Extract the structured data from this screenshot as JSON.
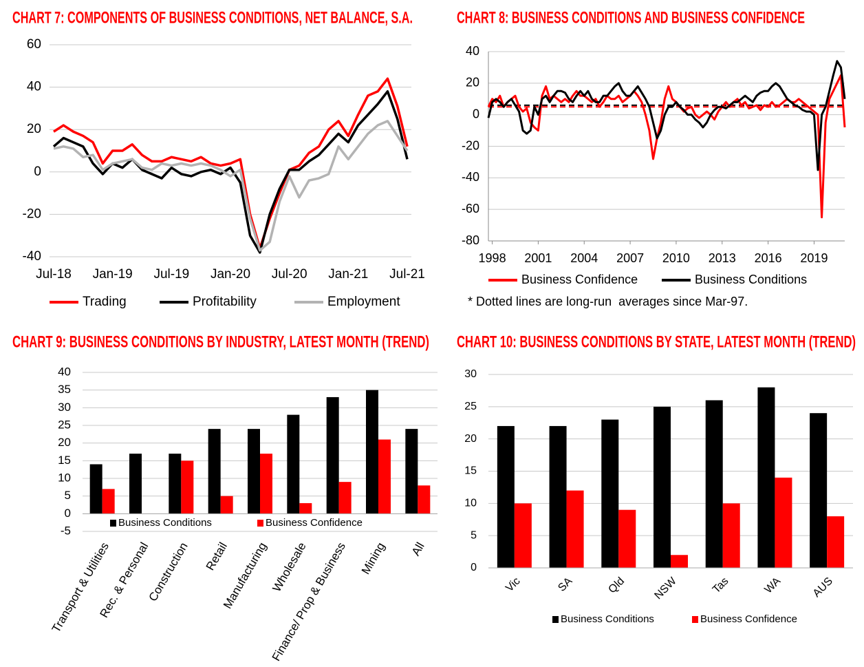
{
  "chart_data": [
    {
      "type": "line",
      "title": "CHART 7: COMPONENTS OF BUSINESS CONDITIONS, NET BALANCE, S.A.",
      "categories": [
        "Jul-18",
        null,
        null,
        null,
        null,
        null,
        "Jan-19",
        null,
        null,
        null,
        null,
        null,
        "Jul-19",
        null,
        null,
        null,
        null,
        null,
        "Jan-20",
        null,
        null,
        null,
        null,
        null,
        "Jul-20",
        null,
        null,
        null,
        null,
        null,
        "Jan-21",
        null,
        null,
        null,
        null,
        null,
        "Jul-21"
      ],
      "series": [
        {
          "name": "Trading",
          "color": "#ff0000",
          "values": [
            19,
            22,
            19,
            17,
            14,
            4,
            10,
            10,
            13,
            8,
            5,
            5,
            7,
            6,
            5,
            7,
            4,
            3,
            4,
            6,
            -20,
            -36,
            -22,
            -10,
            1,
            3,
            9,
            12,
            20,
            24,
            17,
            27,
            36,
            38,
            44,
            31,
            12
          ]
        },
        {
          "name": "Profitability",
          "color": "#000000",
          "values": [
            12,
            16,
            14,
            12,
            4,
            -1,
            4,
            2,
            6,
            1,
            -1,
            -3,
            2,
            -1,
            -2,
            0,
            1,
            -1,
            2,
            -5,
            -30,
            -38,
            -20,
            -8,
            1,
            1,
            5,
            8,
            13,
            18,
            14,
            22,
            27,
            32,
            38,
            25,
            6
          ]
        },
        {
          "name": "Employment",
          "color": "#b3b3b3",
          "values": [
            11,
            12,
            11,
            7,
            8,
            1,
            4,
            5,
            6,
            2,
            1,
            4,
            3,
            4,
            3,
            4,
            3,
            1,
            -2,
            1,
            -22,
            -37,
            -33,
            -14,
            -2,
            -12,
            -4,
            -3,
            -1,
            12,
            6,
            12,
            18,
            22,
            24,
            17,
            10
          ]
        }
      ],
      "ylim": [
        -40,
        60
      ],
      "yticks": [
        -40,
        -20,
        0,
        20,
        40,
        60
      ],
      "grid": true
    },
    {
      "type": "line",
      "title": "CHART 8: BUSINESS CONDITIONS AND BUSINESS CONFIDENCE",
      "x": [
        1997.75,
        1998,
        1998.25,
        1998.5,
        1998.75,
        1999,
        1999.25,
        1999.5,
        1999.75,
        2000,
        2000.25,
        2000.5,
        2000.75,
        2001,
        2001.25,
        2001.5,
        2001.75,
        2002,
        2002.25,
        2002.5,
        2002.75,
        2003,
        2003.25,
        2003.5,
        2003.75,
        2004,
        2004.25,
        2004.5,
        2004.75,
        2005,
        2005.25,
        2005.5,
        2005.75,
        2006,
        2006.25,
        2006.5,
        2006.75,
        2007,
        2007.25,
        2007.5,
        2007.75,
        2008,
        2008.25,
        2008.5,
        2008.75,
        2009,
        2009.25,
        2009.5,
        2009.75,
        2010,
        2010.25,
        2010.5,
        2010.75,
        2011,
        2011.25,
        2011.5,
        2011.75,
        2012,
        2012.25,
        2012.5,
        2012.75,
        2013,
        2013.25,
        2013.5,
        2013.75,
        2014,
        2014.25,
        2014.5,
        2014.75,
        2015,
        2015.25,
        2015.5,
        2015.75,
        2016,
        2016.25,
        2016.5,
        2016.75,
        2017,
        2017.25,
        2017.5,
        2017.75,
        2018,
        2018.25,
        2018.5,
        2018.75,
        2019,
        2019.25,
        2019.5,
        2019.75,
        2020,
        2020.25,
        2020.5,
        2020.75,
        2021
      ],
      "series": [
        {
          "name": "Business Confidence",
          "color": "#ff0000",
          "values": [
            5,
            10,
            8,
            12,
            5,
            8,
            10,
            12,
            5,
            2,
            4,
            -5,
            -8,
            -10,
            12,
            18,
            10,
            12,
            10,
            8,
            10,
            8,
            12,
            15,
            12,
            12,
            10,
            8,
            10,
            5,
            8,
            12,
            10,
            10,
            12,
            8,
            10,
            12,
            15,
            12,
            8,
            0,
            -10,
            -28,
            -15,
            -5,
            10,
            18,
            10,
            8,
            5,
            2,
            4,
            5,
            0,
            -2,
            0,
            2,
            0,
            -3,
            2,
            5,
            8,
            5,
            8,
            10,
            6,
            8,
            4,
            5,
            6,
            3,
            6,
            5,
            8,
            5,
            6,
            8,
            10,
            8,
            8,
            10,
            8,
            6,
            4,
            2,
            0,
            -65,
            -5,
            10,
            15,
            20,
            25,
            -8
          ]
        },
        {
          "name": "Business Conditions",
          "color": "#000000",
          "values": [
            -2,
            8,
            10,
            8,
            5,
            8,
            10,
            6,
            2,
            -10,
            -12,
            -10,
            5,
            0,
            10,
            12,
            8,
            12,
            15,
            15,
            14,
            10,
            8,
            12,
            15,
            12,
            15,
            10,
            8,
            8,
            12,
            12,
            15,
            18,
            20,
            15,
            12,
            12,
            15,
            18,
            14,
            10,
            5,
            -5,
            -15,
            -10,
            0,
            5,
            5,
            8,
            5,
            3,
            0,
            0,
            -3,
            -5,
            -8,
            -5,
            0,
            3,
            5,
            5,
            4,
            6,
            8,
            8,
            10,
            12,
            10,
            8,
            12,
            14,
            15,
            15,
            18,
            20,
            18,
            14,
            10,
            8,
            6,
            5,
            3,
            2,
            2,
            0,
            -35,
            0,
            5,
            15,
            25,
            34,
            30,
            10
          ]
        }
      ],
      "hlines": [
        {
          "value": 6,
          "color": "#000000"
        },
        {
          "value": 5,
          "color": "#ff0000"
        }
      ],
      "note": "* Dotted lines are long-run  averages since Mar-97.",
      "xlim": [
        1997.75,
        2021
      ],
      "xticks": [
        1998,
        2001,
        2004,
        2007,
        2010,
        2013,
        2016,
        2019
      ],
      "ylim": [
        -80,
        40
      ],
      "yticks": [
        -80,
        -60,
        -40,
        -20,
        0,
        20,
        40
      ],
      "grid": true
    },
    {
      "type": "bar",
      "title": "CHART 9: BUSINESS CONDITIONS BY INDUSTRY, LATEST MONTH (TREND)",
      "categories": [
        "Transport & Utilities",
        "Rec. & Personal",
        "Construction",
        "Retail",
        "Manufacturing",
        "Wholesale",
        "Finance/ Prop & Business",
        "Mining",
        "All"
      ],
      "series": [
        {
          "name": "Business Conditions",
          "color": "#000000",
          "values": [
            14,
            17,
            17,
            24,
            24,
            28,
            33,
            35,
            24
          ]
        },
        {
          "name": "Business Confidence",
          "color": "#ff0000",
          "values": [
            7,
            0,
            15,
            5,
            17,
            3,
            9,
            21,
            8
          ]
        }
      ],
      "ylim": [
        -5,
        40
      ],
      "yticks": [
        -5,
        0,
        5,
        10,
        15,
        20,
        25,
        30,
        35,
        40
      ],
      "grid": true
    },
    {
      "type": "bar",
      "title": "CHART 10: BUSINESS CONDITIONS BY STATE, LATEST MONTH (TREND)",
      "categories": [
        "Vic",
        "SA",
        "Qld",
        "NSW",
        "Tas",
        "WA",
        "AUS"
      ],
      "series": [
        {
          "name": "Business Conditions",
          "color": "#000000",
          "values": [
            22,
            22,
            23,
            25,
            26,
            28,
            24
          ]
        },
        {
          "name": "Business Confidence",
          "color": "#ff0000",
          "values": [
            10,
            12,
            9,
            2,
            10,
            14,
            8
          ]
        }
      ],
      "ylim": [
        0,
        30
      ],
      "yticks": [
        0,
        5,
        10,
        15,
        20,
        25,
        30
      ],
      "grid": true
    }
  ]
}
